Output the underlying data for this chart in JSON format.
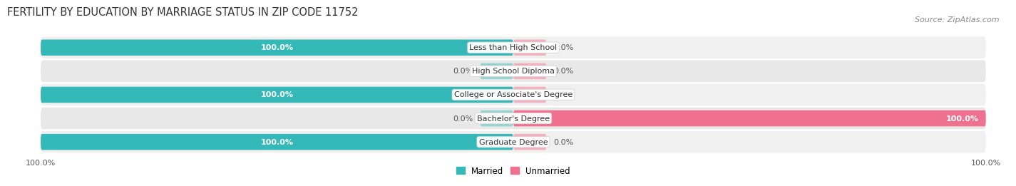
{
  "title": "FERTILITY BY EDUCATION BY MARRIAGE STATUS IN ZIP CODE 11752",
  "source": "Source: ZipAtlas.com",
  "categories": [
    "Less than High School",
    "High School Diploma",
    "College or Associate's Degree",
    "Bachelor's Degree",
    "Graduate Degree"
  ],
  "married": [
    100.0,
    0.0,
    100.0,
    0.0,
    100.0
  ],
  "unmarried": [
    0.0,
    0.0,
    0.0,
    100.0,
    0.0
  ],
  "married_color": "#35b8b8",
  "unmarried_color": "#f07090",
  "married_light": "#98d4d4",
  "unmarried_light": "#f5b0c0",
  "row_bg_odd": "#f0f0f0",
  "row_bg_even": "#e8e8e8",
  "title_fontsize": 10.5,
  "source_fontsize": 8,
  "label_fontsize": 8,
  "tick_fontsize": 8,
  "legend_fontsize": 8.5,
  "placeholder_pct": 7,
  "background_color": "#ffffff"
}
